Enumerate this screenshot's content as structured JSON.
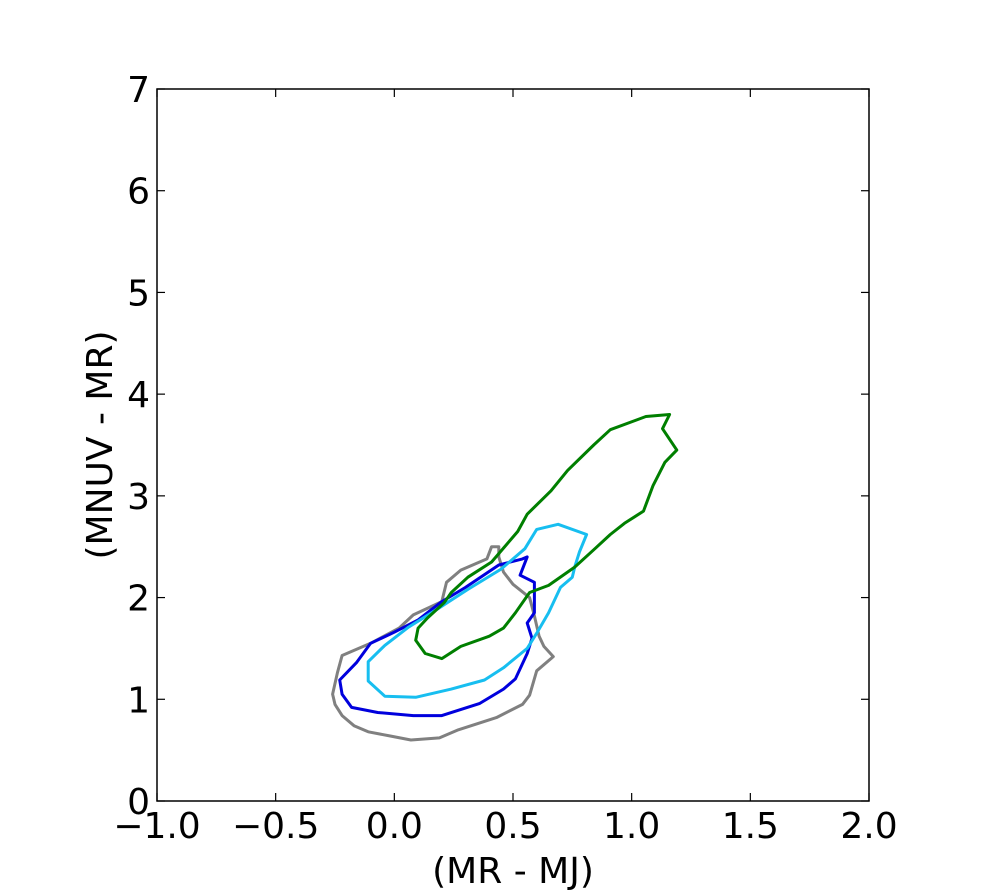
{
  "chart_data": {
    "type": "line",
    "title": "",
    "xlabel": "(MR - MJ)",
    "ylabel": "(MNUV - MR)",
    "xlim": [
      -1.0,
      2.0
    ],
    "ylim": [
      0,
      7
    ],
    "xticks": [
      -1.0,
      -0.5,
      0.0,
      0.5,
      1.0,
      1.5,
      2.0
    ],
    "xtick_labels": [
      "−1.0",
      "−0.5",
      "0.0",
      "0.5",
      "1.0",
      "1.5",
      "2.0"
    ],
    "yticks": [
      0,
      1,
      2,
      3,
      4,
      5,
      6,
      7
    ],
    "ytick_labels": [
      "0",
      "1",
      "2",
      "3",
      "4",
      "5",
      "6",
      "7"
    ],
    "grid": false,
    "series": [
      {
        "color": "#808080",
        "closed": true,
        "points": [
          [
            -0.25,
            0.95
          ],
          [
            -0.26,
            1.05
          ],
          [
            -0.24,
            1.26
          ],
          [
            -0.22,
            1.43
          ],
          [
            -0.1,
            1.55
          ],
          [
            0.02,
            1.7
          ],
          [
            0.08,
            1.83
          ],
          [
            0.2,
            1.96
          ],
          [
            0.22,
            2.15
          ],
          [
            0.28,
            2.27
          ],
          [
            0.39,
            2.38
          ],
          [
            0.41,
            2.5
          ],
          [
            0.44,
            2.5
          ],
          [
            0.44,
            2.4
          ],
          [
            0.46,
            2.25
          ],
          [
            0.5,
            2.13
          ],
          [
            0.57,
            2.0
          ],
          [
            0.59,
            1.82
          ],
          [
            0.61,
            1.62
          ],
          [
            0.63,
            1.52
          ],
          [
            0.67,
            1.42
          ],
          [
            0.6,
            1.28
          ],
          [
            0.57,
            1.04
          ],
          [
            0.54,
            0.95
          ],
          [
            0.43,
            0.82
          ],
          [
            0.27,
            0.7
          ],
          [
            0.19,
            0.62
          ],
          [
            0.07,
            0.6
          ],
          [
            -0.02,
            0.64
          ],
          [
            -0.11,
            0.68
          ],
          [
            -0.17,
            0.74
          ],
          [
            -0.22,
            0.84
          ],
          [
            -0.25,
            0.95
          ]
        ]
      },
      {
        "color": "#0000dd",
        "closed": true,
        "points": [
          [
            -0.18,
            0.92
          ],
          [
            -0.22,
            1.05
          ],
          [
            -0.23,
            1.19
          ],
          [
            -0.16,
            1.36
          ],
          [
            -0.1,
            1.55
          ],
          [
            0.0,
            1.66
          ],
          [
            0.1,
            1.78
          ],
          [
            0.2,
            1.96
          ],
          [
            0.3,
            2.1
          ],
          [
            0.44,
            2.32
          ],
          [
            0.54,
            2.38
          ],
          [
            0.56,
            2.4
          ],
          [
            0.53,
            2.22
          ],
          [
            0.59,
            2.15
          ],
          [
            0.59,
            1.85
          ],
          [
            0.56,
            1.75
          ],
          [
            0.58,
            1.6
          ],
          [
            0.56,
            1.45
          ],
          [
            0.51,
            1.2
          ],
          [
            0.46,
            1.1
          ],
          [
            0.36,
            0.96
          ],
          [
            0.2,
            0.84
          ],
          [
            0.08,
            0.84
          ],
          [
            -0.07,
            0.87
          ],
          [
            -0.18,
            0.92
          ]
        ]
      },
      {
        "color": "#17bef0",
        "closed": true,
        "points": [
          [
            -0.11,
            1.18
          ],
          [
            -0.11,
            1.37
          ],
          [
            -0.04,
            1.53
          ],
          [
            0.06,
            1.71
          ],
          [
            0.17,
            1.87
          ],
          [
            0.31,
            2.08
          ],
          [
            0.45,
            2.28
          ],
          [
            0.55,
            2.48
          ],
          [
            0.6,
            2.67
          ],
          [
            0.69,
            2.72
          ],
          [
            0.81,
            2.62
          ],
          [
            0.78,
            2.45
          ],
          [
            0.76,
            2.3
          ],
          [
            0.75,
            2.2
          ],
          [
            0.7,
            2.1
          ],
          [
            0.65,
            1.85
          ],
          [
            0.6,
            1.65
          ],
          [
            0.56,
            1.5
          ],
          [
            0.46,
            1.31
          ],
          [
            0.38,
            1.19
          ],
          [
            0.24,
            1.1
          ],
          [
            0.09,
            1.02
          ],
          [
            -0.04,
            1.03
          ],
          [
            -0.11,
            1.18
          ]
        ]
      },
      {
        "color": "#007f00",
        "closed": true,
        "points": [
          [
            0.13,
            1.45
          ],
          [
            0.09,
            1.58
          ],
          [
            0.1,
            1.7
          ],
          [
            0.14,
            1.8
          ],
          [
            0.21,
            1.95
          ],
          [
            0.24,
            2.05
          ],
          [
            0.31,
            2.2
          ],
          [
            0.41,
            2.35
          ],
          [
            0.52,
            2.65
          ],
          [
            0.56,
            2.82
          ],
          [
            0.66,
            3.05
          ],
          [
            0.73,
            3.25
          ],
          [
            0.84,
            3.5
          ],
          [
            0.91,
            3.65
          ],
          [
            1.06,
            3.78
          ],
          [
            1.16,
            3.8
          ],
          [
            1.13,
            3.66
          ],
          [
            1.19,
            3.45
          ],
          [
            1.14,
            3.33
          ],
          [
            1.09,
            3.1
          ],
          [
            1.05,
            2.85
          ],
          [
            0.97,
            2.73
          ],
          [
            0.91,
            2.62
          ],
          [
            0.84,
            2.47
          ],
          [
            0.76,
            2.3
          ],
          [
            0.65,
            2.12
          ],
          [
            0.57,
            2.05
          ],
          [
            0.51,
            1.85
          ],
          [
            0.46,
            1.7
          ],
          [
            0.4,
            1.62
          ],
          [
            0.28,
            1.52
          ],
          [
            0.2,
            1.4
          ],
          [
            0.13,
            1.45
          ]
        ]
      }
    ]
  }
}
